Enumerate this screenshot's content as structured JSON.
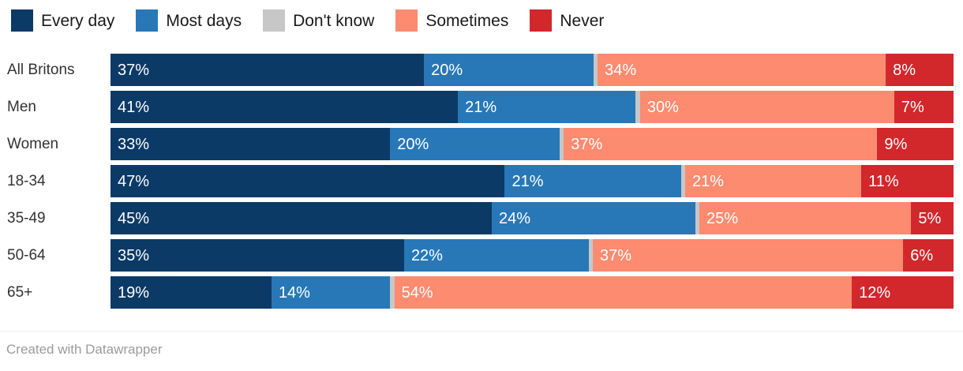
{
  "footer": {
    "credit": "Created with Datawrapper"
  },
  "chart_data": {
    "type": "bar",
    "stacked": true,
    "orientation": "horizontal",
    "unit": "%",
    "xlim": [
      0,
      100
    ],
    "grid": false,
    "legend_position": "top",
    "categories": [
      "All Britons",
      "Men",
      "Women",
      "18-34",
      "35-49",
      "50-64",
      "65+"
    ],
    "series": [
      {
        "name": "Every day",
        "color": "#0c3a66",
        "show_labels": true,
        "values": [
          37,
          41,
          33,
          47,
          45,
          35,
          19
        ]
      },
      {
        "name": "Most days",
        "color": "#2878b7",
        "show_labels": true,
        "values": [
          20,
          21,
          20,
          21,
          24,
          22,
          14
        ]
      },
      {
        "name": "Don't know",
        "color": "#c7c7c7",
        "show_labels": false,
        "values": [
          0.5,
          0.5,
          0.5,
          0.5,
          0.5,
          0.5,
          0.5
        ]
      },
      {
        "name": "Sometimes",
        "color": "#fc8b70",
        "show_labels": true,
        "values": [
          34,
          30,
          37,
          21,
          25,
          37,
          54
        ]
      },
      {
        "name": "Never",
        "color": "#d2272b",
        "show_labels": true,
        "values": [
          8,
          7,
          9,
          11,
          5,
          6,
          12
        ]
      }
    ]
  }
}
